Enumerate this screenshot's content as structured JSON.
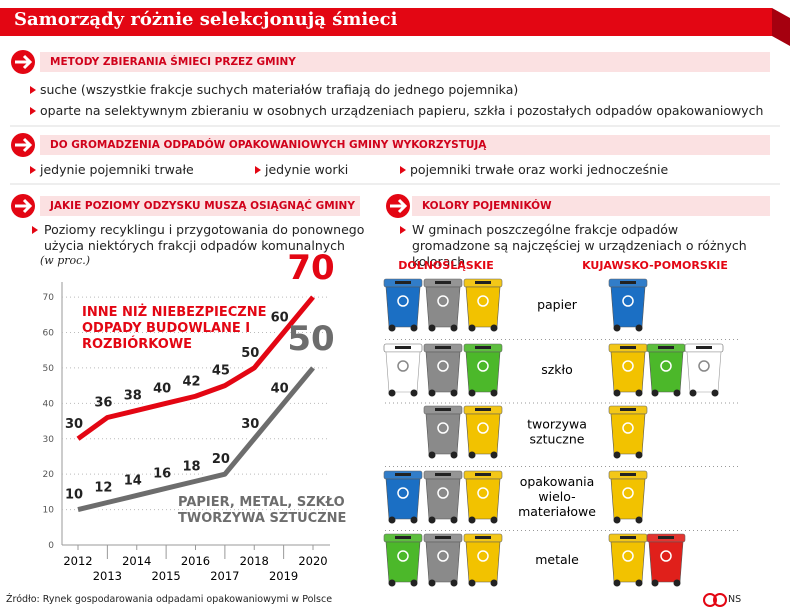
{
  "title": "Samorządy różnie selekcjonują śmieci",
  "methods": {
    "heading": "METODY ZBIERANIA ŚMIECI PRZEZ GMINY",
    "items": [
      "suche (wszystkie frakcje suchych materiałów trafiają do jednego pojemnika)",
      "oparte na selektywnym zbieraniu w osobnych urządzeniach papieru, szkła i pozostałych odpadów opakowaniowych"
    ]
  },
  "containers": {
    "heading": "DO GROMADZENIA ODPADÓW OPAKOWANIOWYCH GMINY WYKORZYSTUJĄ",
    "items": [
      "jedynie pojemniki trwałe",
      "jedynie worki",
      "pojemniki trwałe oraz worki jednocześnie"
    ]
  },
  "recovery": {
    "heading": "JAKIE POZIOMY ODZYSKU MUSZĄ OSIĄGNĄĆ GMINY",
    "description": "Poziomy recyklingu i przygotowania do ponownego użycia niektórych frakcji odpadów komunalnych",
    "unit": "(w proc.)"
  },
  "chart_data": {
    "type": "line",
    "x": [
      2012,
      2013,
      2014,
      2015,
      2016,
      2017,
      2018,
      2019,
      2020
    ],
    "xlim": [
      2012,
      2020
    ],
    "xticks": [
      2012,
      2013,
      2014,
      2015,
      2016,
      2017,
      2018,
      2019,
      2020
    ],
    "ylim": [
      0,
      72
    ],
    "yticks": [
      0,
      10,
      20,
      30,
      40,
      50,
      60,
      70
    ],
    "grid": true,
    "series": [
      {
        "name": "INNE NIŻ NIEBEZPIECZNE ODPADY BUDOWLANE I ROZBIÓRKOWE",
        "color": "#e30613",
        "values": [
          30,
          36,
          38,
          40,
          42,
          45,
          50,
          60,
          70
        ]
      },
      {
        "name": "PAPIER, METAL, SZKŁO TWORZYWA SZTUCZNE",
        "color": "#6d6d6d",
        "values": [
          10,
          12,
          14,
          16,
          18,
          20,
          30,
          40,
          50
        ]
      }
    ]
  },
  "colors": {
    "heading": "KOLORY POJEMNIKÓW",
    "description": "W gminach poszczególne frakcje odpadów gromadzone są najczęściej w urządzeniach o różnych kolorach",
    "regions": [
      "DOLNOŚLĄSKIE",
      "KUJAWSKO-POMORSKIE"
    ],
    "rows": [
      {
        "fraction": [
          "papier"
        ],
        "left": [
          "#1b6fc4",
          "#8a8a8a",
          "#f2c200"
        ],
        "right": [
          "#1b6fc4"
        ]
      },
      {
        "fraction": [
          "szkło"
        ],
        "left": [
          "#ffffff",
          "#8a8a8a",
          "#4cb82a"
        ],
        "right": [
          "#f2c200",
          "#4cb82a",
          "#ffffff"
        ]
      },
      {
        "fraction": [
          "tworzywa",
          "sztuczne"
        ],
        "left": [
          "#8a8a8a",
          "#f2c200"
        ],
        "right": [
          "#f2c200"
        ]
      },
      {
        "fraction": [
          "opakowania",
          "wielo-",
          "materiałowe"
        ],
        "left": [
          "#1b6fc4",
          "#8a8a8a",
          "#f2c200"
        ],
        "right": [
          "#f2c200"
        ]
      },
      {
        "fraction": [
          "metale"
        ],
        "left": [
          "#4cb82a",
          "#8a8a8a",
          "#f2c200"
        ],
        "right": [
          "#f2c200",
          "#e0201b"
        ]
      }
    ]
  },
  "source": "Źródło: Rynek gospodarowania odpadami opakowaniowymi w Polsce",
  "credit": "NS"
}
